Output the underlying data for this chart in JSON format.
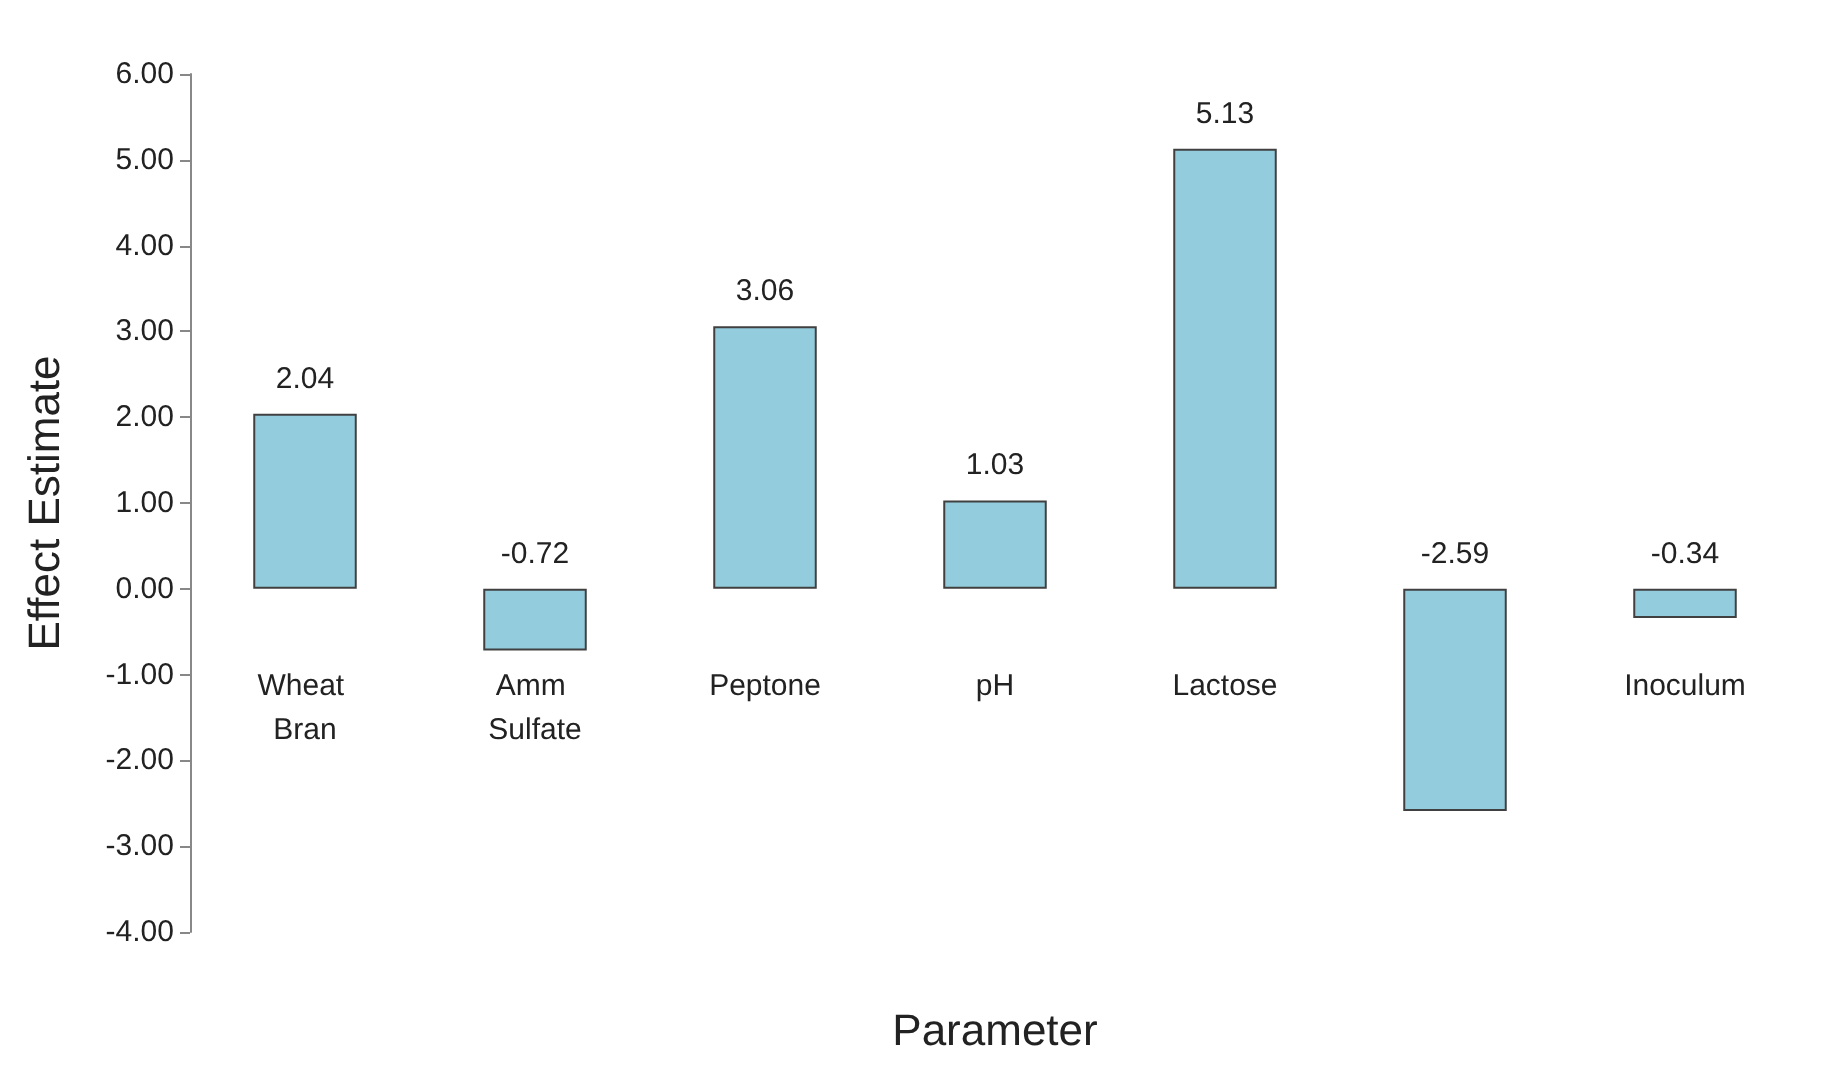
{
  "chart_data": {
    "type": "bar",
    "xlabel": "Parameter",
    "ylabel": "Effect Estimate",
    "categories": [
      "Wheat Bran",
      "Amm Sulfate",
      "Peptone",
      "pH",
      "Lactose",
      null,
      "Inoculum"
    ],
    "values": [
      2.04,
      -0.72,
      3.06,
      1.03,
      5.13,
      -2.59,
      -0.34
    ],
    "color": "#93cddd",
    "ylim": [
      -4,
      6
    ],
    "yticks": [
      {
        "value": -4,
        "label": "-4.00"
      },
      {
        "value": -3,
        "label": "-3.00"
      },
      {
        "value": -2,
        "label": "-2.00"
      },
      {
        "value": -1,
        "label": "-1.00"
      },
      {
        "value": 0,
        "label": "0.00"
      },
      {
        "value": 1,
        "label": "1.00"
      },
      {
        "value": 2,
        "label": "2.00"
      },
      {
        "value": 3,
        "label": "3.00"
      },
      {
        "value": 4,
        "label": "4.00"
      },
      {
        "value": 5,
        "label": "5.00"
      },
      {
        "value": 6,
        "label": "6.00"
      }
    ],
    "data_labels": true,
    "grid": false
  }
}
